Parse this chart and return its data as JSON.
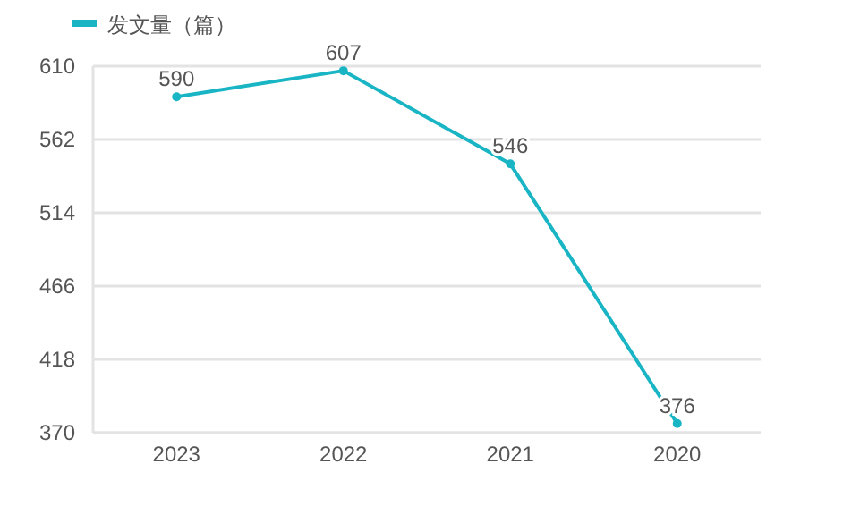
{
  "chart_data": {
    "type": "line",
    "categories": [
      "2023",
      "2022",
      "2021",
      "2020"
    ],
    "series": [
      {
        "name": "发文量（篇）",
        "color": "#1ab5c4",
        "values": [
          590,
          607,
          546,
          376
        ]
      }
    ],
    "ylim": [
      370,
      610
    ],
    "yticks": [
      370,
      418,
      466,
      514,
      562,
      610
    ],
    "grid": "y",
    "legend": "top left",
    "marker": "circle",
    "line_style": "solid",
    "data_labels": true
  }
}
